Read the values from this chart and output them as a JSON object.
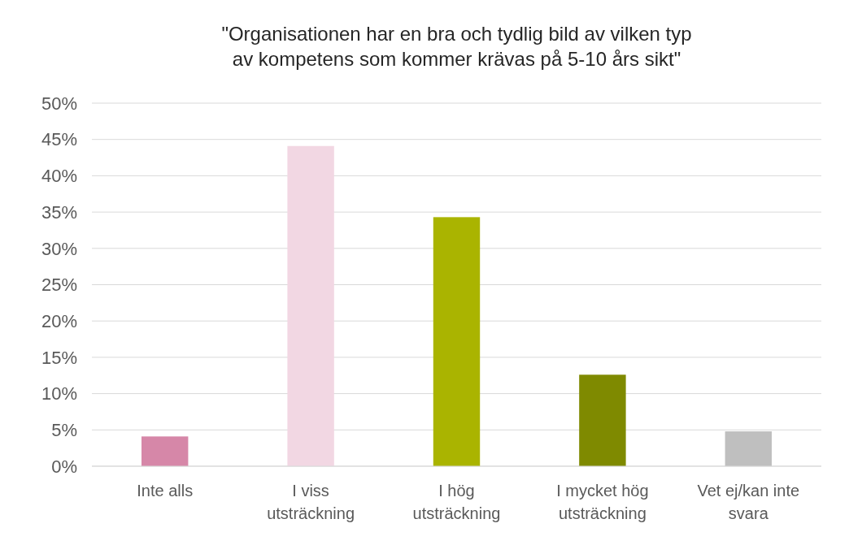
{
  "chart_data": {
    "type": "bar",
    "title": "\"Organisationen har en bra och tydlig bild av vilken typ av kompetens som kommer krävas på 5-10 års sikt\"",
    "categories": [
      "Inte alls",
      "I viss utsträckning",
      "I hög utsträckning",
      "I mycket hög utsträckning",
      "Vet ej/kan inte svara"
    ],
    "values": [
      4.1,
      44.1,
      34.3,
      12.6,
      4.8
    ],
    "colors": [
      "#d687a8",
      "#f2d7e3",
      "#aab400",
      "#7f8a00",
      "#bfbfbf"
    ],
    "ylim": [
      0,
      50
    ],
    "yticks": [
      {
        "value": 0,
        "label": "0%"
      },
      {
        "value": 5,
        "label": "5%"
      },
      {
        "value": 10,
        "label": "10%"
      },
      {
        "value": 15,
        "label": "15%"
      },
      {
        "value": 20,
        "label": "20%"
      },
      {
        "value": 25,
        "label": "25%"
      },
      {
        "value": 30,
        "label": "30%"
      },
      {
        "value": 35,
        "label": "35%"
      },
      {
        "value": 40,
        "label": "40%"
      },
      {
        "value": 45,
        "label": "45%"
      },
      {
        "value": 50,
        "label": "50%"
      }
    ],
    "grid": "y"
  }
}
